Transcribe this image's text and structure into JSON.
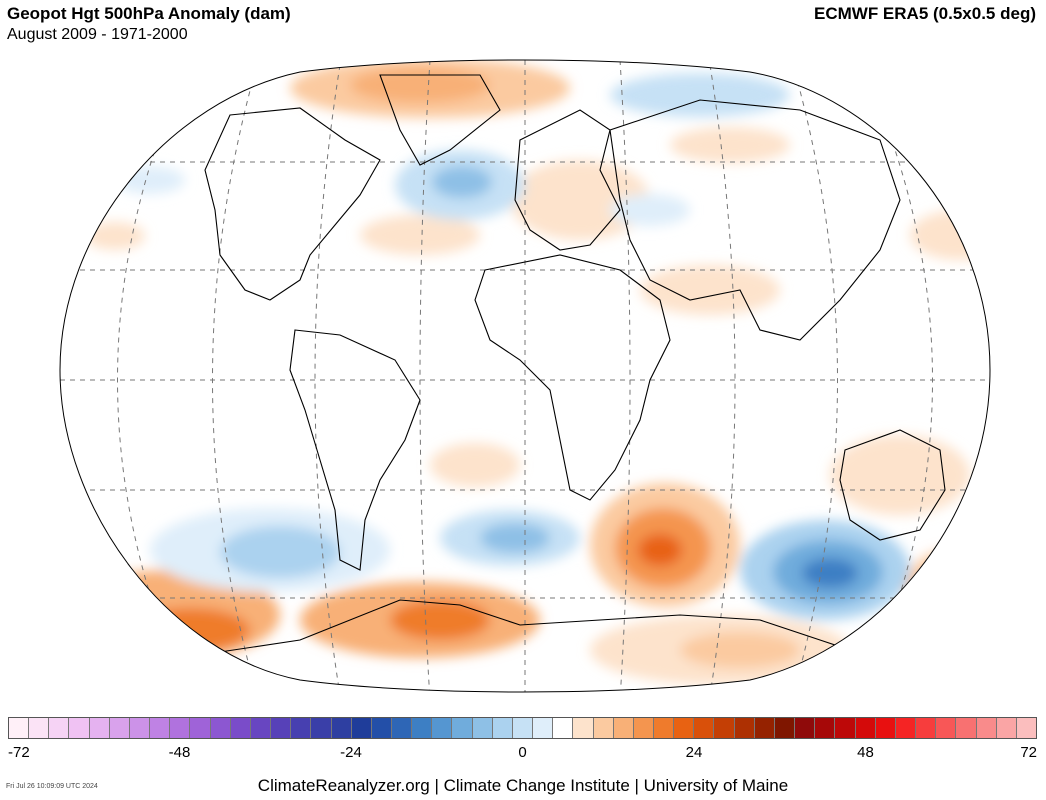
{
  "header": {
    "title": "Geopot Hgt 500hPa Anomaly (dam)",
    "subtitle": "August 2009 - 1971-2000",
    "source": "ECMWF ERA5 (0.5x0.5 deg)"
  },
  "colorbar": {
    "min": -72,
    "max": 72,
    "tick_labels": [
      "-72",
      "-48",
      "-24",
      "0",
      "24",
      "48",
      "72"
    ],
    "colors": [
      "#fff0f8",
      "#fbe3f6",
      "#f6d3f5",
      "#f0c2f3",
      "#e5b2f0",
      "#d9a2ec",
      "#cc92e8",
      "#bf82e4",
      "#b072de",
      "#9f63d8",
      "#8c57d1",
      "#7a4cc9",
      "#6846c1",
      "#5741b8",
      "#4740b0",
      "#3a3fa8",
      "#2e3fa1",
      "#1f3d9a",
      "#234fa8",
      "#2e66b6",
      "#3d7fc4",
      "#5596d1",
      "#70acdc",
      "#8ec0e6",
      "#abd2ef",
      "#c6e1f5",
      "#dfeefa",
      "#ffffff",
      "#fde3cc",
      "#fbcaa0",
      "#f8b077",
      "#f4954f",
      "#ef7b2c",
      "#e86212",
      "#d9500a",
      "#c43f05",
      "#ad3002",
      "#952200",
      "#7f1600",
      "#8f0a0a",
      "#a60808",
      "#bd0808",
      "#d40a0a",
      "#e81010",
      "#f52424",
      "#f73d3d",
      "#f85757",
      "#f87171",
      "#f98b8b",
      "#faa5a5",
      "#fbbebe"
    ]
  },
  "map": {
    "projection": "Robinson-like world",
    "anomaly_highlights": [
      {
        "region": "South Atlantic / SW Indian Ocean",
        "sign": "positive",
        "value_approx": 18
      },
      {
        "region": "South Indian Ocean south of Australia",
        "sign": "negative",
        "value_approx": -15
      },
      {
        "region": "Antarctica (Weddell/Bellingshausen)",
        "sign": "positive",
        "value_approx": 18
      },
      {
        "region": "North Atlantic south of Greenland",
        "sign": "negative",
        "value_approx": -9
      },
      {
        "region": "Southern Pacific",
        "sign": "negative",
        "value_approx": -9
      }
    ]
  },
  "footer": {
    "credits": "ClimateReanalyzer.org | Climate Change Institute | University of Maine",
    "timestamp": "Fri Jul 26 10:09:09 UTC 2024"
  }
}
